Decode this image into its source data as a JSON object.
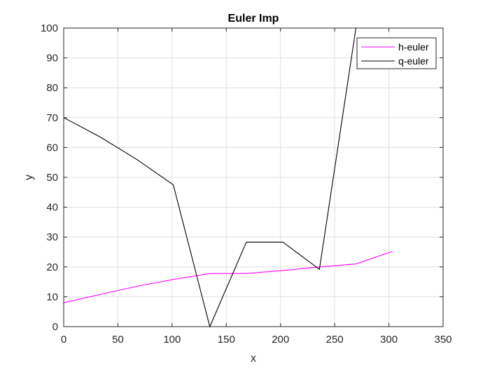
{
  "chart_data": {
    "type": "line",
    "title": "Euler Imp",
    "xlabel": "x",
    "ylabel": "y",
    "xlim": [
      0,
      350
    ],
    "ylim": [
      0,
      100
    ],
    "xticks": [
      0,
      50,
      100,
      150,
      200,
      250,
      300,
      350
    ],
    "yticks": [
      0,
      10,
      20,
      30,
      40,
      50,
      60,
      70,
      80,
      90,
      100
    ],
    "grid": true,
    "legend_location": "top-right",
    "series": [
      {
        "name": "h-euler",
        "color": "#ff00ff",
        "x": [
          0,
          0,
          33.7,
          67.4,
          101.1,
          134.8,
          168.5,
          202.2,
          235.9,
          269.6,
          303.3
        ],
        "y": [
          7.0,
          8.0,
          10.8,
          13.5,
          15.8,
          17.8,
          17.8,
          18.8,
          20.0,
          21.0,
          25.2
        ]
      },
      {
        "name": "q-euler",
        "color": "#000000",
        "x": [
          0,
          33.7,
          67.4,
          101.1,
          134.8,
          168.5,
          202.2,
          235.9,
          269.6,
          303.3
        ],
        "y": [
          70.0,
          63.5,
          56.0,
          47.5,
          0.0,
          28.3,
          28.3,
          19.2,
          100.0,
          100.0
        ]
      }
    ]
  }
}
